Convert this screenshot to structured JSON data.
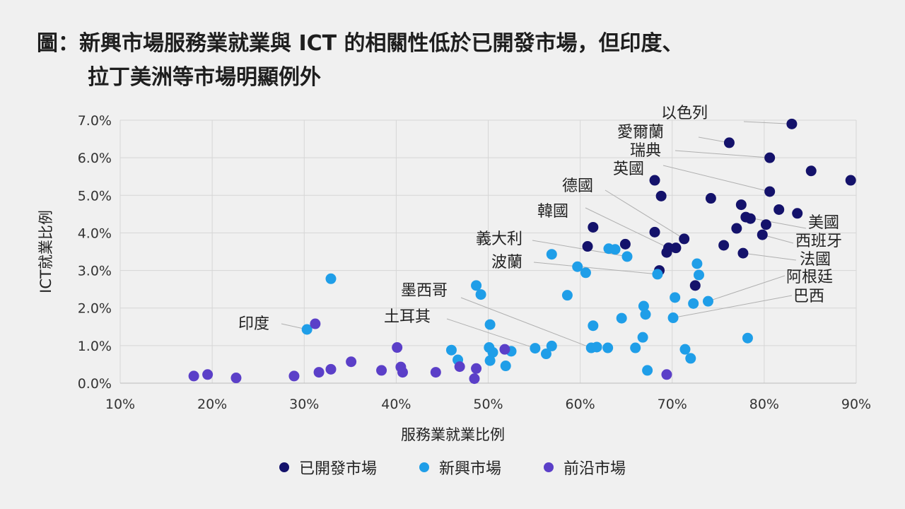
{
  "title": {
    "line1": "圖：新興市場服務業就業與 ICT 的相關性低於已開發市場，但印度、",
    "line2": "拉丁美洲等市場明顯例外"
  },
  "chart_data": {
    "type": "scatter",
    "xlabel": "服務業就業比例",
    "ylabel": "ICT就業比例",
    "xlim": [
      10,
      90
    ],
    "ylim": [
      0,
      7
    ],
    "x_ticks": [
      "10%",
      "20%",
      "30%",
      "40%",
      "50%",
      "60%",
      "70%",
      "80%",
      "90%"
    ],
    "y_ticks": [
      "0.0%",
      "1.0%",
      "2.0%",
      "3.0%",
      "4.0%",
      "5.0%",
      "6.0%",
      "7.0%"
    ],
    "grid": true,
    "legend_position": "bottom",
    "series": [
      {
        "name": "已開發市場",
        "color": "#14126b",
        "points": [
          [
            83.0,
            6.9
          ],
          [
            76.2,
            6.4
          ],
          [
            80.6,
            6.0
          ],
          [
            85.1,
            5.65
          ],
          [
            89.4,
            5.4
          ],
          [
            68.1,
            5.4
          ],
          [
            68.8,
            4.98
          ],
          [
            80.6,
            5.1
          ],
          [
            74.2,
            4.92
          ],
          [
            77.5,
            4.75
          ],
          [
            81.6,
            4.62
          ],
          [
            83.6,
            4.52
          ],
          [
            78.0,
            4.42
          ],
          [
            78.5,
            4.38
          ],
          [
            80.2,
            4.22
          ],
          [
            61.4,
            4.15
          ],
          [
            68.1,
            4.02
          ],
          [
            77.0,
            4.12
          ],
          [
            79.8,
            3.95
          ],
          [
            71.3,
            3.84
          ],
          [
            64.9,
            3.7
          ],
          [
            60.8,
            3.64
          ],
          [
            75.6,
            3.67
          ],
          [
            69.6,
            3.6
          ],
          [
            70.4,
            3.6
          ],
          [
            69.4,
            3.48
          ],
          [
            77.7,
            3.46
          ],
          [
            68.6,
            3.0
          ],
          [
            72.5,
            2.6
          ]
        ]
      },
      {
        "name": "新興市場",
        "color": "#1f9ee8",
        "points": [
          [
            32.9,
            2.78
          ],
          [
            48.7,
            2.6
          ],
          [
            49.2,
            2.36
          ],
          [
            56.9,
            3.43
          ],
          [
            59.7,
            3.1
          ],
          [
            60.6,
            2.94
          ],
          [
            58.6,
            2.34
          ],
          [
            63.1,
            3.58
          ],
          [
            63.8,
            3.56
          ],
          [
            65.1,
            3.37
          ],
          [
            68.4,
            2.9
          ],
          [
            72.7,
            3.18
          ],
          [
            72.9,
            2.88
          ],
          [
            66.9,
            2.05
          ],
          [
            67.1,
            1.83
          ],
          [
            70.3,
            2.28
          ],
          [
            72.3,
            2.12
          ],
          [
            73.9,
            2.18
          ],
          [
            70.1,
            1.74
          ],
          [
            64.5,
            1.73
          ],
          [
            61.4,
            1.53
          ],
          [
            50.2,
            1.56
          ],
          [
            30.3,
            1.43
          ],
          [
            66.8,
            1.22
          ],
          [
            78.2,
            1.2
          ],
          [
            46.0,
            0.88
          ],
          [
            46.7,
            0.62
          ],
          [
            50.1,
            0.95
          ],
          [
            50.5,
            0.82
          ],
          [
            52.5,
            0.85
          ],
          [
            50.2,
            0.6
          ],
          [
            51.9,
            0.46
          ],
          [
            55.1,
            0.93
          ],
          [
            56.9,
            0.99
          ],
          [
            56.3,
            0.78
          ],
          [
            61.2,
            0.94
          ],
          [
            61.8,
            0.96
          ],
          [
            63.0,
            0.94
          ],
          [
            66.0,
            0.94
          ],
          [
            71.4,
            0.9
          ],
          [
            72.0,
            0.66
          ],
          [
            67.3,
            0.34
          ]
        ]
      },
      {
        "name": "前沿市場",
        "color": "#5b3fc8",
        "points": [
          [
            31.2,
            1.58
          ],
          [
            18.0,
            0.19
          ],
          [
            19.5,
            0.23
          ],
          [
            22.6,
            0.14
          ],
          [
            28.9,
            0.19
          ],
          [
            31.6,
            0.29
          ],
          [
            32.9,
            0.37
          ],
          [
            35.1,
            0.57
          ],
          [
            38.4,
            0.34
          ],
          [
            40.1,
            0.95
          ],
          [
            40.5,
            0.43
          ],
          [
            40.7,
            0.29
          ],
          [
            44.3,
            0.29
          ],
          [
            46.9,
            0.44
          ],
          [
            48.7,
            0.39
          ],
          [
            48.5,
            0.12
          ],
          [
            51.8,
            0.9
          ],
          [
            69.4,
            0.23
          ]
        ]
      }
    ],
    "annotations": [
      {
        "label": "以色列",
        "point": [
          83.0,
          6.9
        ]
      },
      {
        "label": "愛爾蘭",
        "point": [
          76.2,
          6.4
        ]
      },
      {
        "label": "瑞典",
        "point": [
          80.6,
          6.0
        ]
      },
      {
        "label": "英國",
        "point": [
          80.6,
          5.1
        ]
      },
      {
        "label": "德國",
        "point": [
          71.3,
          3.84
        ]
      },
      {
        "label": "韓國",
        "point": [
          69.6,
          3.6
        ]
      },
      {
        "label": "義大利",
        "point": [
          65.1,
          3.37
        ]
      },
      {
        "label": "波蘭",
        "point": [
          68.4,
          2.9
        ]
      },
      {
        "label": "墨西哥",
        "point": [
          61.2,
          0.94
        ]
      },
      {
        "label": "土耳其",
        "point": [
          55.1,
          0.93
        ]
      },
      {
        "label": "印度",
        "point": [
          30.3,
          1.43
        ]
      },
      {
        "label": "美國",
        "point": [
          78.0,
          4.42
        ]
      },
      {
        "label": "西班牙",
        "point": [
          79.8,
          3.95
        ]
      },
      {
        "label": "法國",
        "point": [
          77.7,
          3.46
        ]
      },
      {
        "label": "阿根廷",
        "point": [
          73.9,
          2.18
        ]
      },
      {
        "label": "巴西",
        "point": [
          70.1,
          1.74
        ]
      }
    ]
  }
}
